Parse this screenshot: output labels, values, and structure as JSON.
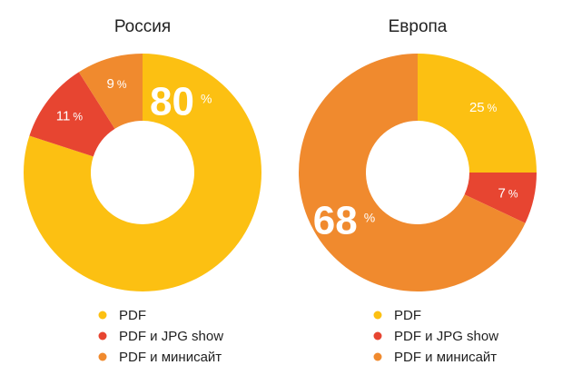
{
  "colors": {
    "pdf": "#FCC012",
    "pdf_jpg": "#E74531",
    "pdf_mini": "#F08A2E"
  },
  "chart_data": [
    {
      "type": "pie",
      "variant": "donut",
      "title": "Россия",
      "unit": "%",
      "slices": [
        {
          "name": "PDF",
          "value": 80,
          "label": "80",
          "color_key": "pdf",
          "emphasis": true
        },
        {
          "name": "PDF и JPG show",
          "value": 11,
          "label": "11",
          "color_key": "pdf_jpg",
          "emphasis": false
        },
        {
          "name": "PDF и минисайт",
          "value": 9,
          "label": "9",
          "color_key": "pdf_mini",
          "emphasis": false
        }
      ],
      "legend": [
        "PDF",
        "PDF и JPG show",
        "PDF и минисайт"
      ]
    },
    {
      "type": "pie",
      "variant": "donut",
      "title": "Европа",
      "unit": "%",
      "slices": [
        {
          "name": "PDF",
          "value": 25,
          "label": "25",
          "color_key": "pdf",
          "emphasis": false
        },
        {
          "name": "PDF и JPG show",
          "value": 7,
          "label": "7",
          "color_key": "pdf_jpg",
          "emphasis": false
        },
        {
          "name": "PDF и минисайт",
          "value": 68,
          "label": "68",
          "color_key": "pdf_mini",
          "emphasis": true
        }
      ],
      "legend": [
        "PDF",
        "PDF и JPG show",
        "PDF и минисайт"
      ]
    }
  ]
}
